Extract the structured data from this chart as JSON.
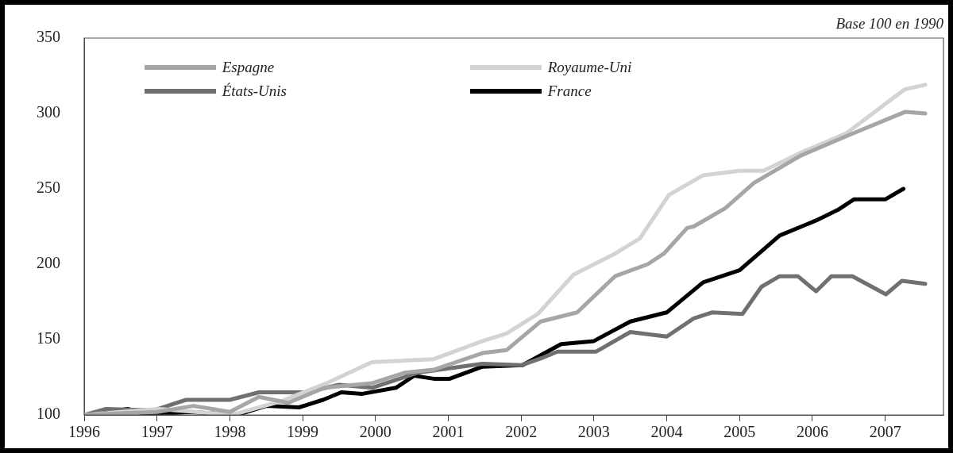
{
  "chart_data": {
    "type": "line",
    "subtitle": "Base 100 en 1990",
    "xlim": [
      1996,
      2007.8
    ],
    "xticks": [
      1996,
      1997,
      1998,
      1999,
      2000,
      2001,
      2002,
      2003,
      2004,
      2005,
      2006,
      2007
    ],
    "ylim": [
      100,
      350
    ],
    "yticks": [
      100,
      150,
      200,
      250,
      300,
      350
    ],
    "grid": false,
    "legend": "top left",
    "marker": "none",
    "line_style": "solid",
    "series": [
      {
        "name": "Espagne",
        "color": "#a6a6a6",
        "x": [
          1996,
          1996.5,
          1997,
          1997.5,
          1998,
          1998.4,
          1998.8,
          1999.3,
          1999.95,
          2000.4,
          2000.8,
          2001.47,
          2001.8,
          2002.27,
          2002.77,
          2003.29,
          2003.74,
          2003.96,
          2004.28,
          2004.37,
          2004.8,
          2005.2,
          2005.84,
          2006.47,
          2007.27,
          2007.55
        ],
        "values": [
          100,
          101,
          102,
          106,
          102,
          112,
          108,
          118,
          121,
          128,
          130,
          141,
          143,
          162,
          168,
          192,
          200,
          207,
          224,
          225,
          237,
          254,
          272,
          285,
          301,
          300
        ]
      },
      {
        "name": "Royaume-Uni",
        "color": "#d3d3d3",
        "x": [
          1996,
          1996.5,
          1997.03,
          1998.03,
          1998.7,
          1999.33,
          1999.95,
          2000.8,
          2001.47,
          2001.8,
          2002.23,
          2002.72,
          2003.29,
          2003.63,
          2004.03,
          2004.5,
          2005.0,
          2005.33,
          2005.84,
          2006.47,
          2007.27,
          2007.55
        ],
        "values": [
          100,
          102,
          104,
          100,
          109,
          121,
          135,
          137,
          149,
          154,
          167,
          193,
          207,
          217,
          246,
          259,
          262,
          262,
          274,
          287,
          316,
          319
        ]
      },
      {
        "name": "États-Unis",
        "color": "#707070",
        "x": [
          1996,
          1996.3,
          1996.95,
          1997.4,
          1998,
          1998.4,
          1999.05,
          1999.5,
          1999.95,
          2000.58,
          2001.47,
          2002.0,
          2002.3,
          2002.5,
          2003.03,
          2003.5,
          2004,
          2004.37,
          2004.62,
          2005.04,
          2005.3,
          2005.55,
          2005.8,
          2006.05,
          2006.26,
          2006.55,
          2007.01,
          2007.23,
          2007.55
        ],
        "values": [
          100,
          104,
          103,
          110,
          110,
          115,
          115,
          120,
          118,
          128,
          134,
          133,
          138,
          142,
          142,
          155,
          152,
          164,
          168,
          167,
          185,
          192,
          192,
          182,
          192,
          192,
          180,
          189,
          187
        ]
      },
      {
        "name": "France",
        "color": "#000000",
        "x": [
          1996,
          1996.6,
          1996.85,
          1997.45,
          1998.1,
          1998.5,
          1998.95,
          1999.28,
          1999.53,
          1999.82,
          2000.28,
          2000.53,
          2000.8,
          2001.02,
          2001.47,
          2002.02,
          2002.55,
          2003,
          2003.5,
          2004,
          2004.5,
          2005,
          2005.55,
          2006.05,
          2006.35,
          2006.57,
          2007.0,
          2007.25
        ],
        "values": [
          100,
          104,
          100,
          102,
          100,
          106,
          105,
          110,
          115,
          114,
          118,
          126,
          124,
          124,
          132,
          133,
          147,
          149,
          162,
          168,
          188,
          196,
          219,
          229,
          236,
          243,
          243,
          250
        ]
      }
    ]
  }
}
